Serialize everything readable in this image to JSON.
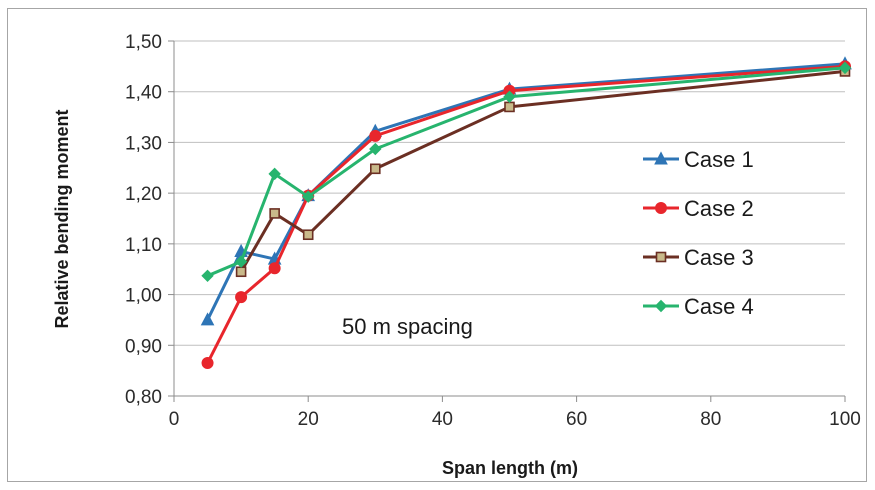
{
  "chart_data": {
    "type": "line",
    "xlabel": "Span length (m)",
    "ylabel": "Relative bending moment",
    "xlim": [
      0,
      100
    ],
    "ylim": [
      0.8,
      1.5
    ],
    "xticks": [
      "0",
      "20",
      "40",
      "60",
      "80",
      "100"
    ],
    "yticks": [
      "0,80",
      "0,90",
      "1,00",
      "1,10",
      "1,20",
      "1,30",
      "1,40",
      "1,50"
    ],
    "grid": "horizontal",
    "legend_position": "right",
    "annotation": "50 m spacing",
    "x": [
      5,
      10,
      15,
      20,
      30,
      50,
      100
    ],
    "series": [
      {
        "name": "Case 1",
        "color": "#2e75b6",
        "marker": "triangle",
        "values": [
          0.95,
          1.085,
          1.07,
          1.195,
          1.322,
          1.405,
          1.455
        ]
      },
      {
        "name": "Case 2",
        "color": "#e8262c",
        "marker": "circle",
        "values": [
          0.865,
          0.995,
          1.052,
          1.195,
          1.313,
          1.402,
          1.45
        ]
      },
      {
        "name": "Case 3",
        "color": "#6b2f23",
        "marker": "square",
        "values": [
          null,
          1.045,
          1.16,
          1.118,
          1.248,
          1.37,
          1.44
        ]
      },
      {
        "name": "Case 4",
        "color": "#27b46e",
        "marker": "diamond",
        "values": [
          1.037,
          1.065,
          1.238,
          1.193,
          1.287,
          1.39,
          1.447
        ]
      }
    ]
  }
}
